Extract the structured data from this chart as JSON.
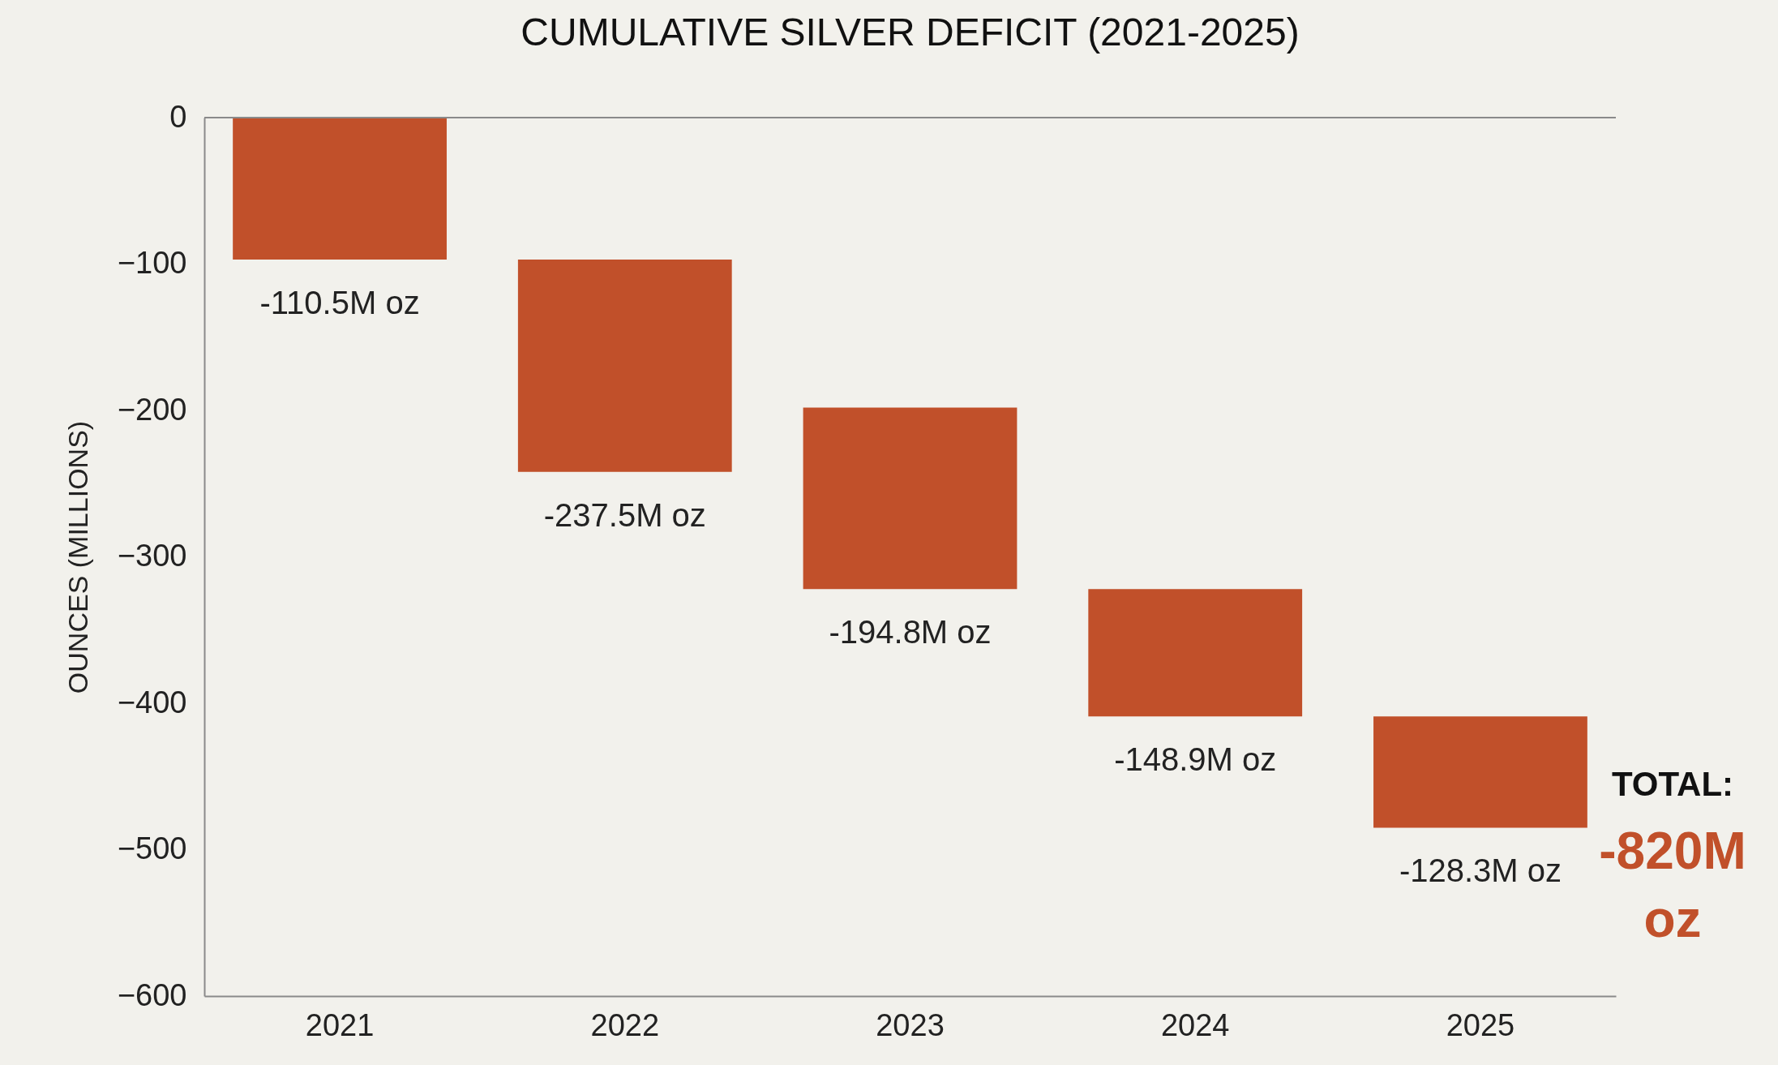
{
  "chart_data": {
    "type": "bar",
    "title": "CUMULATIVE SILVER DEFICIT (2021-2025)",
    "ylabel": "OUNCES (MILLIONS)",
    "categories": [
      "2021",
      "2022",
      "2023",
      "2024",
      "2025"
    ],
    "base": [
      0,
      -97,
      -198,
      -322,
      -409
    ],
    "values": [
      -97,
      -145,
      -124,
      -87,
      -76
    ],
    "color": "#c1502a",
    "ylim": [
      -600,
      0
    ],
    "yticks": [
      0,
      -100,
      -200,
      -300,
      -400,
      -500,
      -600
    ],
    "ref_lines": [
      {
        "axis": "y",
        "value": 0,
        "color": "#8a8a8a"
      }
    ],
    "annotations": [
      {
        "text": "-110.5M oz",
        "x": "2021",
        "y": -97
      },
      {
        "text": "-237.5M oz",
        "x": "2022",
        "y": -242
      },
      {
        "text": "-194.8M oz",
        "x": "2023",
        "y": -322
      },
      {
        "text": "-148.9M oz",
        "x": "2024",
        "y": -409
      },
      {
        "text": "-128.3M oz",
        "x": "2025",
        "y": -485
      },
      "TOTAL:",
      "-820M oz"
    ]
  }
}
